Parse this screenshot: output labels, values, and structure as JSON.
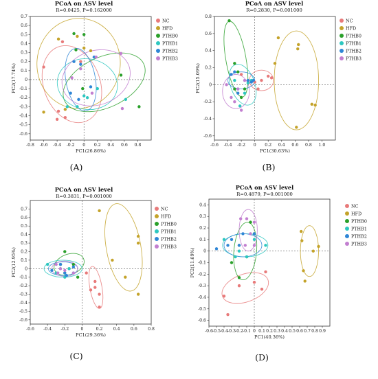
{
  "colors": {
    "NC": "#e87a7a",
    "HFD": "#c4a32a",
    "PTHB0": "#2aa02a",
    "PTHB1": "#2dc7c0",
    "PTHB2": "#2f86d6",
    "PTHB3": "#c27fd0"
  },
  "chart_data": [
    {
      "type": "scatter",
      "panel_label": "(A)",
      "title": "PCoA on ASV level",
      "subtitle": "R=0.0425, P=0.162000",
      "xlabel": "PC1(26.86%)",
      "ylabel": "PC2(17.74%)",
      "xlim": [
        -0.8,
        1.0
      ],
      "ylim": [
        -0.67,
        0.7
      ],
      "xticks": [
        "-0.8",
        "-0.6",
        "-0.4",
        "-0.2",
        "0",
        "0.2",
        "0.4",
        "0.6",
        "0.8"
      ],
      "yticks": [
        "-0.6",
        "-0.5",
        "-0.4",
        "-0.3",
        "-0.2",
        "-0.1",
        "0",
        "0.1",
        "0.2",
        "0.3",
        "0.4",
        "0.5",
        "0.6",
        "0.7"
      ],
      "legend": [
        "NC",
        "HFD",
        "PTHB0",
        "PTHB1",
        "PTHB2",
        "PTHB3"
      ],
      "series": [
        {
          "name": "NC",
          "points": [
            [
              -0.6,
              0.14
            ],
            [
              -0.32,
              0.42
            ],
            [
              -0.38,
              -0.35
            ],
            [
              -0.4,
              -0.44
            ],
            [
              -0.28,
              -0.42
            ],
            [
              -0.05,
              0.2
            ]
          ],
          "ellipse": {
            "cx": -0.18,
            "cy": -0.05,
            "rx": 0.42,
            "ry": 0.44,
            "angle": -20
          }
        },
        {
          "name": "HFD",
          "points": [
            [
              -0.6,
              -0.36
            ],
            [
              -0.28,
              -0.33
            ],
            [
              -0.38,
              0.45
            ],
            [
              -0.1,
              0.48
            ],
            [
              0.1,
              0.32
            ],
            [
              0.0,
              0.35
            ]
          ],
          "ellipse": {
            "cx": -0.08,
            "cy": 0.18,
            "rx": 0.62,
            "ry": 0.5,
            "angle": 5
          }
        },
        {
          "name": "PTHB0",
          "points": [
            [
              -0.15,
              0.51
            ],
            [
              0.0,
              0.5
            ],
            [
              -0.12,
              0.33
            ],
            [
              0.55,
              0.05
            ],
            [
              0.82,
              -0.3
            ],
            [
              -0.02,
              -0.1
            ]
          ],
          "ellipse": {
            "cx": 0.3,
            "cy": -0.03,
            "rx": 0.65,
            "ry": 0.28,
            "angle": -25
          }
        },
        {
          "name": "PTHB1",
          "points": [
            [
              -0.25,
              -0.3
            ],
            [
              0.62,
              -0.22
            ],
            [
              0.0,
              -0.18
            ],
            [
              -0.1,
              -0.3
            ],
            [
              0.2,
              -0.1
            ],
            [
              0.05,
              -0.2
            ]
          ],
          "ellipse": {
            "cx": 0.05,
            "cy": -0.05,
            "rx": 0.45,
            "ry": 0.28,
            "angle": 10
          }
        },
        {
          "name": "PTHB2",
          "points": [
            [
              -0.15,
              0.2
            ],
            [
              -0.2,
              -0.15
            ],
            [
              0.1,
              -0.08
            ],
            [
              -0.08,
              -0.22
            ],
            [
              0.15,
              0.25
            ],
            [
              -0.05,
              0.17
            ]
          ],
          "ellipse": {
            "cx": -0.05,
            "cy": 0.0,
            "rx": 0.22,
            "ry": 0.35,
            "angle": -10
          }
        },
        {
          "name": "PTHB3",
          "points": [
            [
              0.55,
              0.29
            ],
            [
              0.57,
              -0.32
            ],
            [
              -0.18,
              0.02
            ],
            [
              0.18,
              0.25
            ],
            [
              0.12,
              -0.15
            ],
            [
              -0.05,
              0.12
            ]
          ],
          "ellipse": {
            "cx": 0.18,
            "cy": 0.02,
            "rx": 0.52,
            "ry": 0.3,
            "angle": -20
          }
        }
      ]
    },
    {
      "type": "scatter",
      "panel_label": "(B)",
      "title": "PCoA on ASV level",
      "subtitle": "R=0.2830, P=0.001000",
      "xlabel": "PC1(30.63%)",
      "ylabel": "PC2(15.09%)",
      "xlim": [
        -0.6,
        1.2
      ],
      "ylim": [
        -0.65,
        0.8
      ],
      "xticks": [
        "-0.6",
        "-0.4",
        "-0.2",
        "0",
        "0.2",
        "0.4",
        "0.6",
        "0.8",
        "1.0"
      ],
      "yticks": [
        "-0.6",
        "-0.4",
        "-0.2",
        "0",
        "0.2",
        "0.4",
        "0.6",
        "0.8"
      ],
      "legend": [
        "NC",
        "HFD",
        "PTHB0",
        "PTHB1",
        "PTHB2",
        "PTHB3"
      ],
      "series": [
        {
          "name": "NC",
          "points": [
            [
              0.1,
              0.05
            ],
            [
              0.2,
              0.1
            ],
            [
              0.05,
              -0.05
            ],
            [
              0.25,
              0.08
            ],
            [
              -0.2,
              0.12
            ],
            [
              0.0,
              0.03
            ]
          ],
          "ellipse": {
            "cx": 0.1,
            "cy": 0.05,
            "rx": 0.18,
            "ry": 0.12,
            "angle": 0
          }
        },
        {
          "name": "HFD",
          "points": [
            [
              0.35,
              0.55
            ],
            [
              0.65,
              0.47
            ],
            [
              0.64,
              0.42
            ],
            [
              0.85,
              -0.23
            ],
            [
              0.9,
              -0.24
            ],
            [
              0.62,
              -0.5
            ],
            [
              0.3,
              0.25
            ]
          ],
          "ellipse": {
            "cx": 0.62,
            "cy": 0.05,
            "rx": 0.33,
            "ry": 0.58,
            "angle": 0
          }
        },
        {
          "name": "PTHB0",
          "points": [
            [
              -0.38,
              0.75
            ],
            [
              -0.3,
              0.25
            ],
            [
              -0.25,
              0.15
            ],
            [
              -0.15,
              -0.05
            ],
            [
              -0.2,
              -0.15
            ],
            [
              -0.3,
              -0.05
            ]
          ],
          "ellipse": {
            "cx": -0.28,
            "cy": 0.3,
            "rx": 0.15,
            "ry": 0.45,
            "angle": -10
          }
        },
        {
          "name": "PTHB1",
          "points": [
            [
              -0.22,
              -0.25
            ],
            [
              -0.15,
              -0.1
            ],
            [
              -0.3,
              0.05
            ],
            [
              -0.1,
              0.02
            ],
            [
              -0.25,
              -0.05
            ],
            [
              -0.05,
              0.05
            ]
          ],
          "ellipse": {
            "cx": -0.18,
            "cy": 0.0,
            "rx": 0.18,
            "ry": 0.25,
            "angle": -20
          }
        },
        {
          "name": "PTHB2",
          "points": [
            [
              -0.35,
              0.12
            ],
            [
              -0.1,
              0.05
            ],
            [
              -0.05,
              0.03
            ],
            [
              -0.25,
              -0.1
            ],
            [
              -0.3,
              0.15
            ],
            [
              -0.02,
              0.05
            ]
          ],
          "ellipse": {
            "cx": -0.2,
            "cy": 0.05,
            "rx": 0.2,
            "ry": 0.1,
            "angle": 0
          }
        },
        {
          "name": "PTHB3",
          "points": [
            [
              -0.42,
              0.0
            ],
            [
              -0.2,
              -0.3
            ],
            [
              -0.3,
              -0.2
            ],
            [
              -0.35,
              -0.15
            ],
            [
              -0.25,
              -0.05
            ],
            [
              -0.15,
              0.05
            ]
          ],
          "ellipse": {
            "cx": -0.28,
            "cy": -0.08,
            "rx": 0.2,
            "ry": 0.2,
            "angle": 0
          }
        }
      ]
    },
    {
      "type": "scatter",
      "panel_label": "(C)",
      "title": "PCoA on ASV level",
      "subtitle": "R=0.3831, P=0.001000",
      "xlabel": "PC1(29.36%)",
      "ylabel": "PC2(12.95%)",
      "xlim": [
        -0.6,
        0.8
      ],
      "ylim": [
        -0.65,
        0.8
      ],
      "xticks": [
        "-0.6",
        "-0.4",
        "-0.2",
        "0",
        "0.2",
        "0.4",
        "0.6",
        "0.8"
      ],
      "yticks": [
        "-0.6",
        "-0.5",
        "-0.4",
        "-0.3",
        "-0.2",
        "-0.1",
        "0",
        "0.1",
        "0.2",
        "0.3",
        "0.4",
        "0.5",
        "0.6",
        "0.7"
      ],
      "legend": [
        "NC",
        "HFD",
        "PTHB0",
        "PTHB1",
        "PTHB2",
        "PTHB3"
      ],
      "series": [
        {
          "name": "NC",
          "points": [
            [
              0.15,
              -0.15
            ],
            [
              0.2,
              -0.45
            ],
            [
              0.1,
              -0.25
            ],
            [
              0.15,
              -0.22
            ],
            [
              0.2,
              -0.3
            ],
            [
              0.05,
              -0.05
            ]
          ],
          "ellipse": {
            "cx": 0.16,
            "cy": -0.22,
            "rx": 0.07,
            "ry": 0.25,
            "angle": -10
          }
        },
        {
          "name": "HFD",
          "points": [
            [
              0.2,
              0.68
            ],
            [
              0.65,
              0.38
            ],
            [
              0.65,
              0.3
            ],
            [
              0.35,
              0.1
            ],
            [
              0.65,
              -0.3
            ],
            [
              0.5,
              -0.1
            ]
          ],
          "ellipse": {
            "cx": 0.48,
            "cy": 0.25,
            "rx": 0.2,
            "ry": 0.52,
            "angle": -10
          }
        },
        {
          "name": "PTHB0",
          "points": [
            [
              -0.2,
              0.2
            ],
            [
              -0.25,
              0.05
            ],
            [
              -0.1,
              0.05
            ],
            [
              -0.2,
              -0.05
            ],
            [
              -0.15,
              0.0
            ],
            [
              -0.05,
              -0.1
            ]
          ],
          "ellipse": {
            "cx": -0.15,
            "cy": 0.05,
            "rx": 0.18,
            "ry": 0.12,
            "angle": -20
          }
        },
        {
          "name": "PTHB1",
          "points": [
            [
              -0.4,
              0.05
            ],
            [
              -0.3,
              -0.05
            ],
            [
              -0.2,
              -0.1
            ],
            [
              -0.15,
              0.0
            ],
            [
              -0.1,
              -0.05
            ],
            [
              -0.25,
              0.0
            ]
          ],
          "ellipse": {
            "cx": -0.22,
            "cy": 0.0,
            "rx": 0.22,
            "ry": 0.1,
            "angle": 0
          }
        },
        {
          "name": "PTHB2",
          "points": [
            [
              -0.35,
              -0.02
            ],
            [
              -0.25,
              0.05
            ],
            [
              -0.18,
              -0.08
            ],
            [
              -0.1,
              0.02
            ],
            [
              -0.2,
              -0.05
            ]
          ],
          "ellipse": {
            "cx": -0.22,
            "cy": 0.0,
            "rx": 0.17,
            "ry": 0.08,
            "angle": 0
          }
        },
        {
          "name": "PTHB3",
          "points": [
            [
              -0.3,
              0.05
            ],
            [
              -0.25,
              0.0
            ],
            [
              -0.2,
              -0.02
            ],
            [
              -0.1,
              -0.05
            ],
            [
              -0.28,
              -0.05
            ]
          ],
          "ellipse": {
            "cx": -0.2,
            "cy": 0.0,
            "rx": 0.15,
            "ry": 0.09,
            "angle": 0
          }
        }
      ]
    },
    {
      "type": "scatter",
      "panel_label": "(D)",
      "title": "PCoA on ASV level",
      "subtitle": "R=0.4879, P=0.001000",
      "xlabel": "PC1(40.36%)",
      "ylabel": "PC2(11.69%)",
      "xlim": [
        -0.6,
        1.0
      ],
      "ylim": [
        -0.65,
        0.45
      ],
      "xticks": [
        "-0.6",
        "-0.5",
        "-0.4",
        "-0.3",
        "-0.2",
        "-0.1",
        "0",
        "0.1",
        "0.2",
        "0.3",
        "0.4",
        "0.5",
        "0.6",
        "0.7",
        "0.8",
        "0.9"
      ],
      "yticks": [
        "-0.6",
        "-0.5",
        "-0.4",
        "-0.3",
        "-0.2",
        "-0.1",
        "0",
        "0.1",
        "0.2",
        "0.3",
        "0.4"
      ],
      "legend": [
        "NC",
        "HFD",
        "PTHB0",
        "PTHB1",
        "PTHB2",
        "PTHB3"
      ],
      "series": [
        {
          "name": "NC",
          "points": [
            [
              -0.4,
              -0.39
            ],
            [
              -0.2,
              -0.3
            ],
            [
              0.0,
              -0.27
            ],
            [
              0.1,
              -0.33
            ],
            [
              0.15,
              -0.18
            ],
            [
              -0.35,
              -0.55
            ]
          ],
          "ellipse": {
            "cx": -0.12,
            "cy": -0.32,
            "rx": 0.32,
            "ry": 0.12,
            "angle": -20
          }
        },
        {
          "name": "HFD",
          "points": [
            [
              0.62,
              0.17
            ],
            [
              0.63,
              0.09
            ],
            [
              0.78,
              0.0
            ],
            [
              0.85,
              0.04
            ],
            [
              0.65,
              -0.17
            ],
            [
              0.67,
              -0.26
            ]
          ],
          "ellipse": {
            "cx": 0.73,
            "cy": 0.0,
            "rx": 0.12,
            "ry": 0.22,
            "angle": 0
          }
        },
        {
          "name": "PTHB0",
          "points": [
            [
              -0.2,
              0.05
            ],
            [
              -0.3,
              -0.1
            ],
            [
              -0.2,
              -0.23
            ],
            [
              -0.1,
              -0.05
            ],
            [
              -0.05,
              0.25
            ],
            [
              0.0,
              0.15
            ]
          ],
          "ellipse": {
            "cx": -0.12,
            "cy": 0.0,
            "rx": 0.15,
            "ry": 0.25,
            "angle": 5
          }
        },
        {
          "name": "PTHB1",
          "points": [
            [
              -0.4,
              0.1
            ],
            [
              0.15,
              0.05
            ],
            [
              -0.2,
              0.0
            ],
            [
              -0.1,
              -0.05
            ],
            [
              0.0,
              0.1
            ],
            [
              -0.25,
              -0.05
            ]
          ],
          "ellipse": {
            "cx": -0.12,
            "cy": 0.05,
            "rx": 0.3,
            "ry": 0.1,
            "angle": 0
          }
        },
        {
          "name": "PTHB2",
          "points": [
            [
              -0.5,
              0.02
            ],
            [
              -0.3,
              0.1
            ],
            [
              -0.2,
              0.05
            ],
            [
              -0.15,
              0.15
            ],
            [
              0.0,
              0.15
            ],
            [
              -0.35,
              0.05
            ]
          ],
          "ellipse": {
            "cx": -0.15,
            "cy": 0.05,
            "rx": 0.25,
            "ry": 0.1,
            "angle": 0
          }
        },
        {
          "name": "PTHB3",
          "points": [
            [
              -0.18,
              0.28
            ],
            [
              -0.1,
              0.28
            ],
            [
              0.0,
              0.25
            ],
            [
              -0.05,
              0.15
            ],
            [
              -0.12,
              0.05
            ],
            [
              0.0,
              0.05
            ]
          ],
          "ellipse": {
            "cx": -0.08,
            "cy": 0.18,
            "rx": 0.12,
            "ry": 0.18,
            "angle": 0
          }
        }
      ]
    }
  ]
}
